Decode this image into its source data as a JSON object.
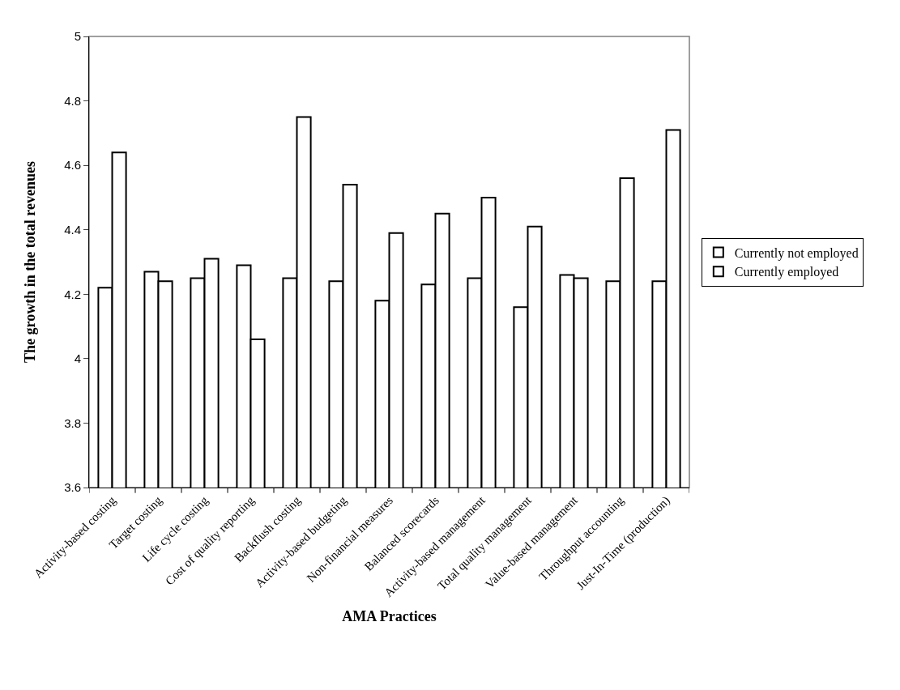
{
  "chart_data": {
    "type": "bar",
    "xlabel": "AMA Practices",
    "ylabel": "The growth in the total revenues",
    "categories": [
      "Activity-based costing",
      "Target costing",
      "Life cycle costing",
      "Cost of quality reporting",
      "Backflush costing",
      "Activity-based budgeting",
      "Non-financial measures",
      "Balanced scorecards",
      "Activity-based management",
      "Total quality management",
      "Value-based management",
      "Throughput accounting",
      "Just-In-Time (production)"
    ],
    "series": [
      {
        "name": "Currently not employed",
        "color": "#ffffff",
        "values": [
          4.22,
          4.27,
          4.25,
          4.29,
          4.25,
          4.24,
          4.18,
          4.23,
          4.25,
          4.16,
          4.26,
          4.24,
          4.24
        ]
      },
      {
        "name": "Currently employed",
        "color": "#ffffff",
        "values": [
          4.64,
          4.24,
          4.31,
          4.06,
          4.75,
          4.54,
          4.39,
          4.45,
          4.5,
          4.41,
          4.25,
          4.56,
          4.71
        ]
      }
    ],
    "ylim": [
      3.6,
      5
    ],
    "yticks": [
      3.6,
      3.8,
      4,
      4.2,
      4.4,
      4.6,
      4.8,
      5
    ],
    "grid": false,
    "legend": "right"
  }
}
